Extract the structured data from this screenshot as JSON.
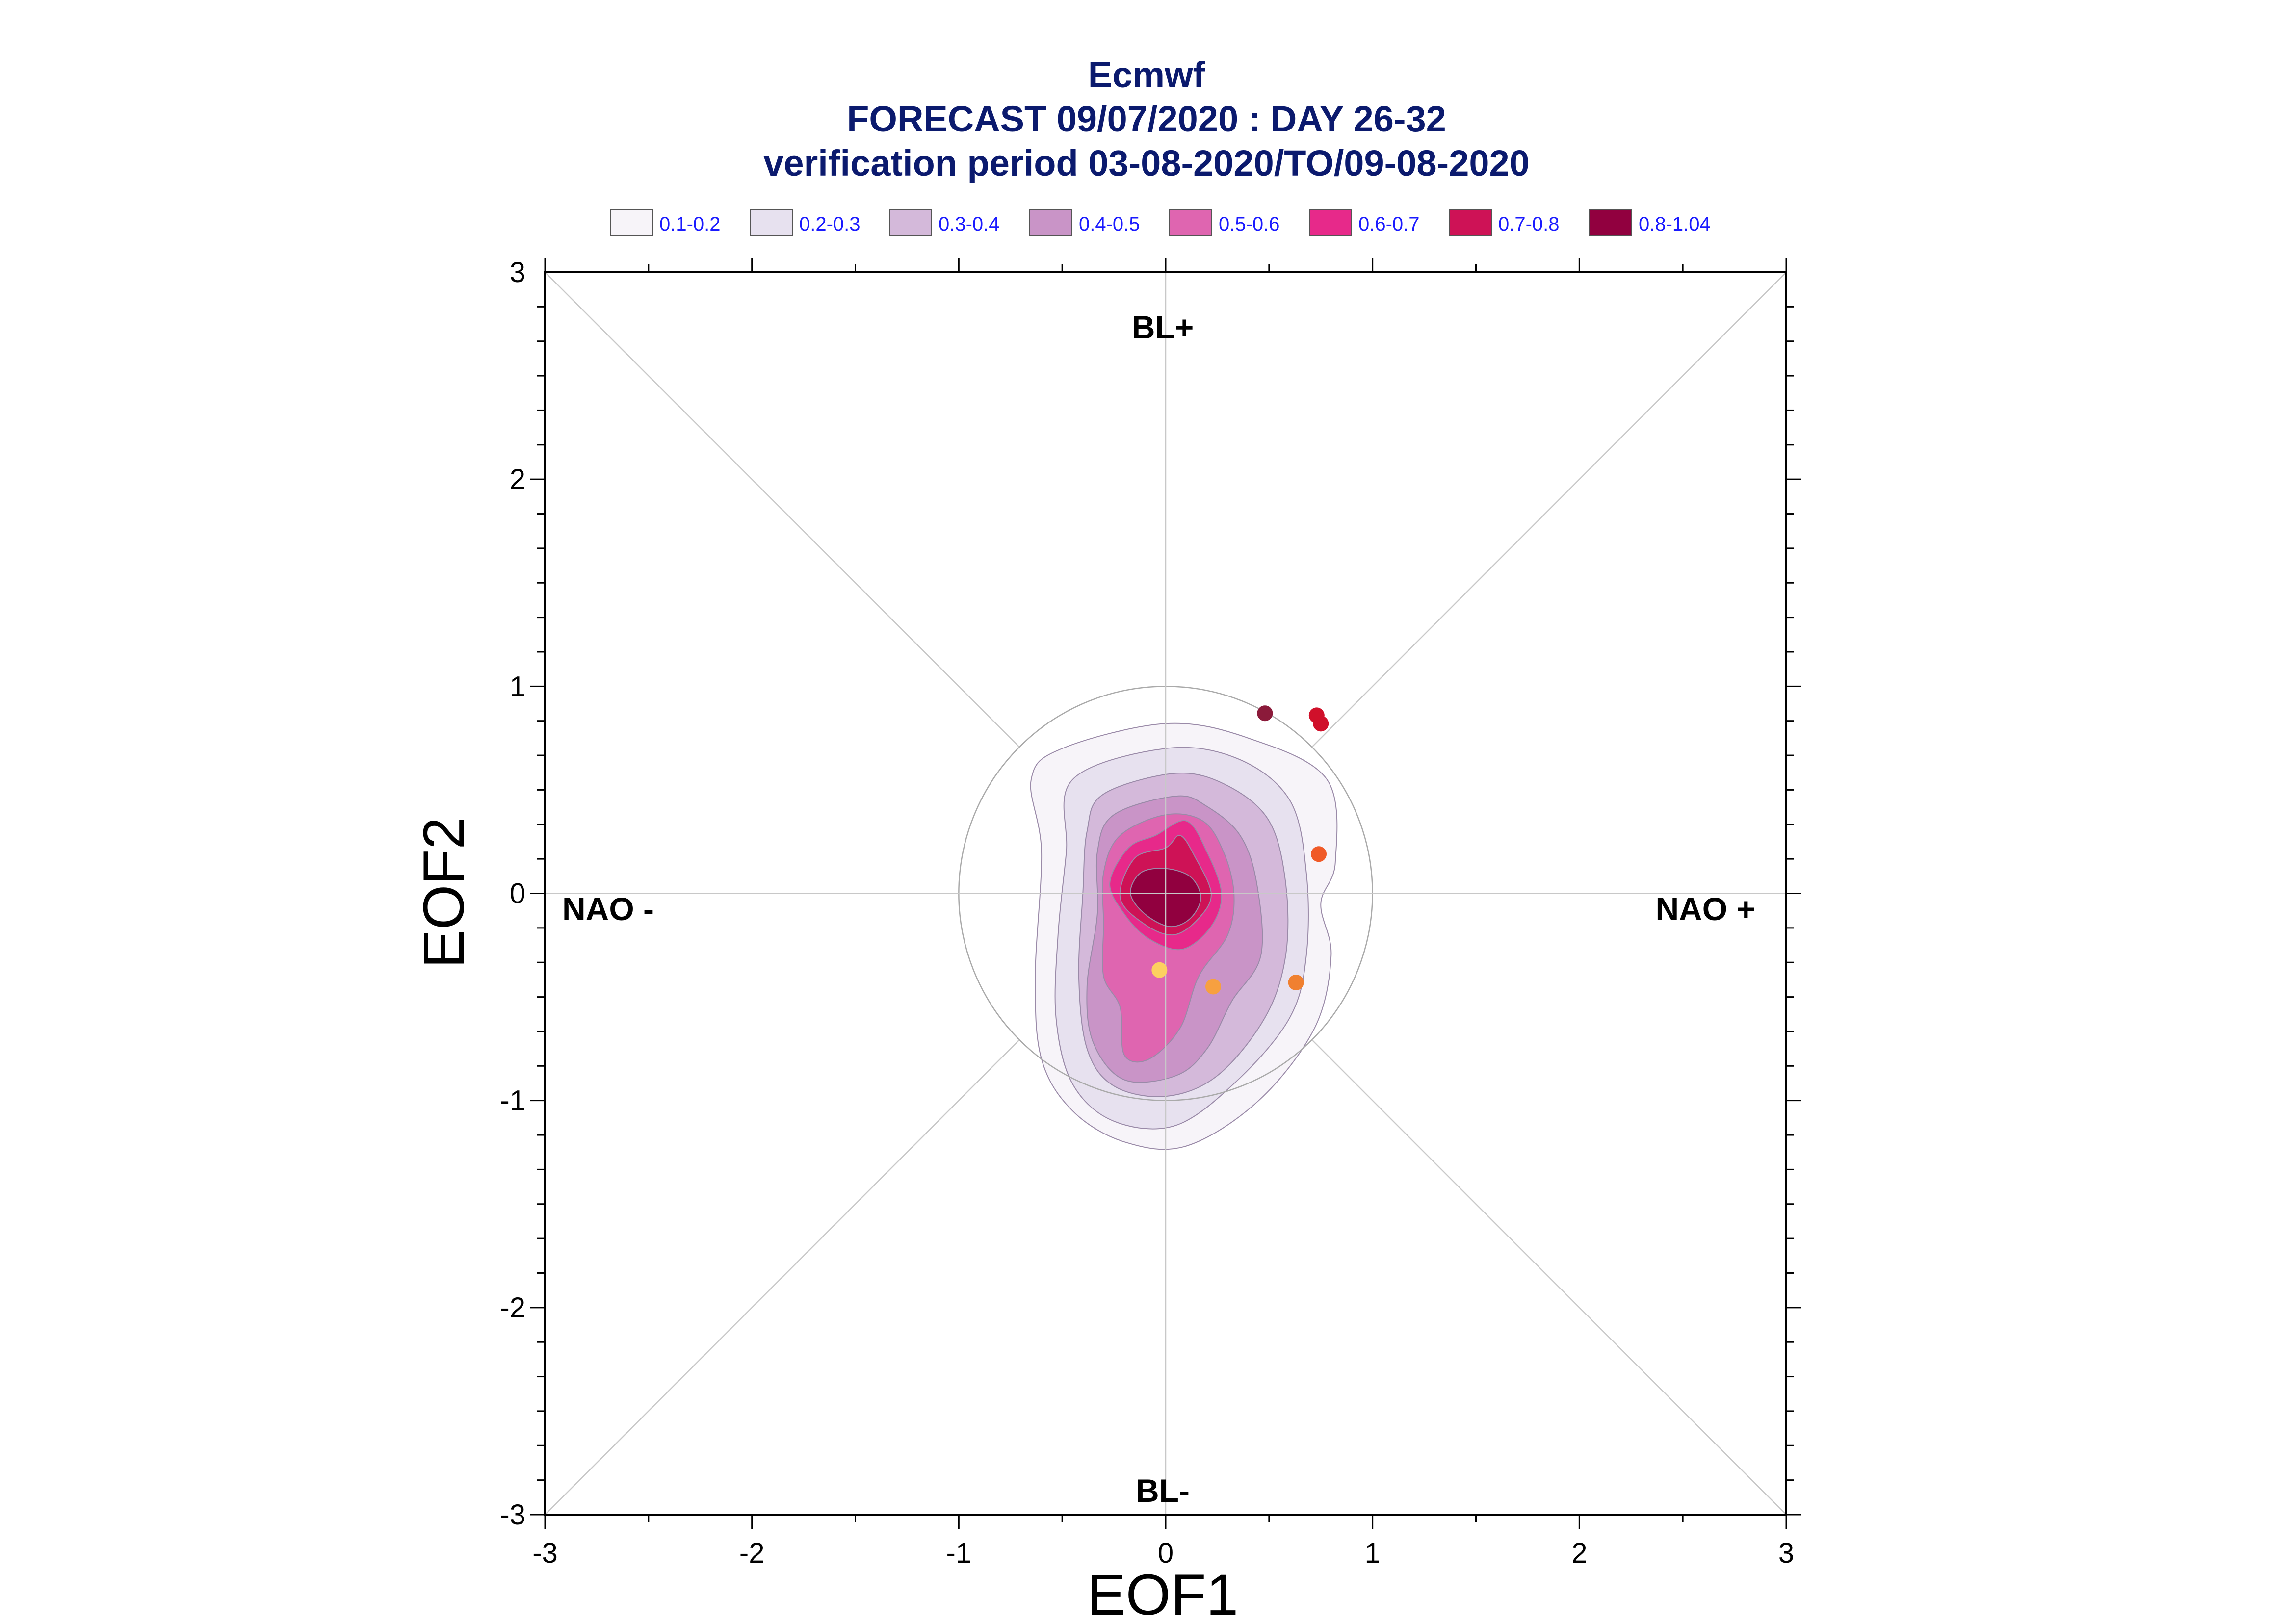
{
  "chart_data": {
    "type": "contour",
    "title_lines": [
      "Ecmwf",
      "FORECAST 09/07/2020 : DAY 26-32",
      "verification period 03-08-2020/TO/09-08-2020"
    ],
    "xlabel": "EOF1",
    "ylabel": "EOF2",
    "xlim": [
      -3,
      3
    ],
    "ylim": [
      -3,
      3
    ],
    "xticks": [
      -3,
      -2,
      -1,
      0,
      1,
      2,
      3
    ],
    "yticks": [
      -3,
      -2,
      -1,
      0,
      1,
      2,
      3
    ],
    "x_tick_labels": [
      "-3",
      "-2",
      "-1",
      "0",
      "1",
      "2",
      "3"
    ],
    "y_tick_labels": [
      "-3",
      "-2",
      "-1",
      "0",
      "1",
      "2",
      "3"
    ],
    "region_labels": {
      "top": "BL+",
      "bottom": "BL-",
      "left": "NAO -",
      "right": "NAO +"
    },
    "reference_circle_radius": 1,
    "legend": [
      {
        "label": "0.1-0.2",
        "color": "#f7f4f9"
      },
      {
        "label": "0.2-0.3",
        "color": "#e7e1ef"
      },
      {
        "label": "0.3-0.4",
        "color": "#d4b9da"
      },
      {
        "label": "0.4-0.5",
        "color": "#c994c7"
      },
      {
        "label": "0.5-0.6",
        "color": "#df65b0"
      },
      {
        "label": "0.6-0.7",
        "color": "#e7298a"
      },
      {
        "label": "0.7-0.8",
        "color": "#ce1256"
      },
      {
        "label": "0.8-1.04",
        "color": "#91003f"
      }
    ],
    "contours": [
      {
        "level": "0.1-0.2",
        "points": [
          [
            -0.5,
            0.7
          ],
          [
            0.0,
            0.82
          ],
          [
            0.4,
            0.75
          ],
          [
            0.78,
            0.55
          ],
          [
            0.82,
            0.15
          ],
          [
            0.75,
            -0.05
          ],
          [
            0.8,
            -0.3
          ],
          [
            0.72,
            -0.65
          ],
          [
            0.45,
            -1.0
          ],
          [
            0.1,
            -1.22
          ],
          [
            -0.2,
            -1.2
          ],
          [
            -0.45,
            -1.05
          ],
          [
            -0.6,
            -0.8
          ],
          [
            -0.63,
            -0.4
          ],
          [
            -0.6,
            0.2
          ],
          [
            -0.65,
            0.55
          ]
        ]
      },
      {
        "level": "0.2-0.3",
        "points": [
          [
            -0.45,
            0.55
          ],
          [
            0.0,
            0.7
          ],
          [
            0.35,
            0.65
          ],
          [
            0.6,
            0.45
          ],
          [
            0.68,
            0.1
          ],
          [
            0.68,
            -0.3
          ],
          [
            0.6,
            -0.6
          ],
          [
            0.35,
            -0.9
          ],
          [
            0.05,
            -1.12
          ],
          [
            -0.25,
            -1.1
          ],
          [
            -0.45,
            -0.92
          ],
          [
            -0.53,
            -0.6
          ],
          [
            -0.52,
            -0.2
          ],
          [
            -0.48,
            0.2
          ]
        ]
      },
      {
        "level": "0.3-0.4",
        "points": [
          [
            -0.3,
            0.48
          ],
          [
            0.05,
            0.58
          ],
          [
            0.3,
            0.52
          ],
          [
            0.5,
            0.35
          ],
          [
            0.58,
            0.05
          ],
          [
            0.58,
            -0.3
          ],
          [
            0.48,
            -0.6
          ],
          [
            0.25,
            -0.88
          ],
          [
            0.0,
            -0.98
          ],
          [
            -0.25,
            -0.93
          ],
          [
            -0.38,
            -0.75
          ],
          [
            -0.42,
            -0.4
          ],
          [
            -0.4,
            0.0
          ],
          [
            -0.38,
            0.3
          ]
        ]
      },
      {
        "level": "0.4-0.5",
        "points": [
          [
            -0.25,
            0.38
          ],
          [
            0.05,
            0.47
          ],
          [
            0.2,
            0.42
          ],
          [
            0.36,
            0.28
          ],
          [
            0.44,
            0.05
          ],
          [
            0.46,
            -0.3
          ],
          [
            0.32,
            -0.52
          ],
          [
            0.2,
            -0.75
          ],
          [
            0.05,
            -0.88
          ],
          [
            -0.2,
            -0.9
          ],
          [
            -0.35,
            -0.72
          ],
          [
            -0.38,
            -0.45
          ],
          [
            -0.33,
            -0.1
          ],
          [
            -0.33,
            0.2
          ]
        ]
      },
      {
        "level": "0.5-0.6",
        "points": [
          [
            -0.22,
            0.28
          ],
          [
            0.0,
            0.38
          ],
          [
            0.18,
            0.35
          ],
          [
            0.28,
            0.2
          ],
          [
            0.33,
            0.0
          ],
          [
            0.3,
            -0.2
          ],
          [
            0.16,
            -0.4
          ],
          [
            0.07,
            -0.65
          ],
          [
            -0.08,
            -0.8
          ],
          [
            -0.2,
            -0.78
          ],
          [
            -0.22,
            -0.55
          ],
          [
            -0.3,
            -0.4
          ],
          [
            -0.3,
            -0.15
          ],
          [
            -0.3,
            0.1
          ]
        ]
      },
      {
        "level": "0.6-0.7",
        "points": [
          [
            -0.18,
            0.22
          ],
          [
            -0.05,
            0.28
          ],
          [
            0.1,
            0.35
          ],
          [
            0.2,
            0.2
          ],
          [
            0.27,
            0.0
          ],
          [
            0.22,
            -0.16
          ],
          [
            0.08,
            -0.27
          ],
          [
            -0.08,
            -0.22
          ],
          [
            -0.2,
            -0.1
          ],
          [
            -0.27,
            0.05
          ]
        ]
      },
      {
        "level": "0.7-0.8",
        "points": [
          [
            -0.15,
            0.17
          ],
          [
            0.0,
            0.22
          ],
          [
            0.07,
            0.28
          ],
          [
            0.14,
            0.18
          ],
          [
            0.22,
            0.0
          ],
          [
            0.16,
            -0.12
          ],
          [
            0.04,
            -0.2
          ],
          [
            -0.1,
            -0.15
          ],
          [
            -0.22,
            -0.02
          ]
        ]
      },
      {
        "level": "0.8-1.04",
        "points": [
          [
            -0.12,
            0.1
          ],
          [
            0.0,
            0.12
          ],
          [
            0.12,
            0.08
          ],
          [
            0.17,
            -0.02
          ],
          [
            0.12,
            -0.12
          ],
          [
            0.02,
            -0.16
          ],
          [
            -0.1,
            -0.1
          ],
          [
            -0.17,
            0.0
          ]
        ]
      }
    ],
    "points": [
      {
        "x": 0.48,
        "y": 0.87,
        "color": "#8b1a3a"
      },
      {
        "x": 0.73,
        "y": 0.86,
        "color": "#d0102a"
      },
      {
        "x": 0.75,
        "y": 0.82,
        "color": "#d0102a"
      },
      {
        "x": 0.74,
        "y": 0.19,
        "color": "#f05a28"
      },
      {
        "x": 0.63,
        "y": -0.43,
        "color": "#f08030"
      },
      {
        "x": 0.23,
        "y": -0.45,
        "color": "#f7a040"
      },
      {
        "x": -0.03,
        "y": -0.37,
        "color": "#fdd060"
      }
    ]
  }
}
